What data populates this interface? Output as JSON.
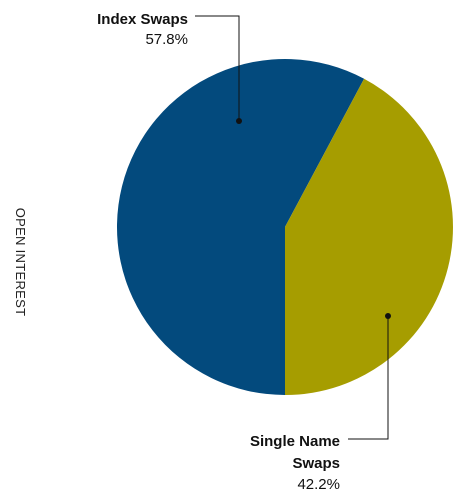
{
  "chart_data": {
    "type": "pie",
    "ylabel": "OPEN INTEREST",
    "slices": [
      {
        "name_lines": [
          "Index Swaps"
        ],
        "value": 57.8,
        "value_label": "57.8%",
        "color": "#034a7d"
      },
      {
        "name_lines": [
          "Single Name",
          "Swaps"
        ],
        "value": 42.2,
        "value_label": "42.2%",
        "color": "#a69d00"
      }
    ]
  }
}
